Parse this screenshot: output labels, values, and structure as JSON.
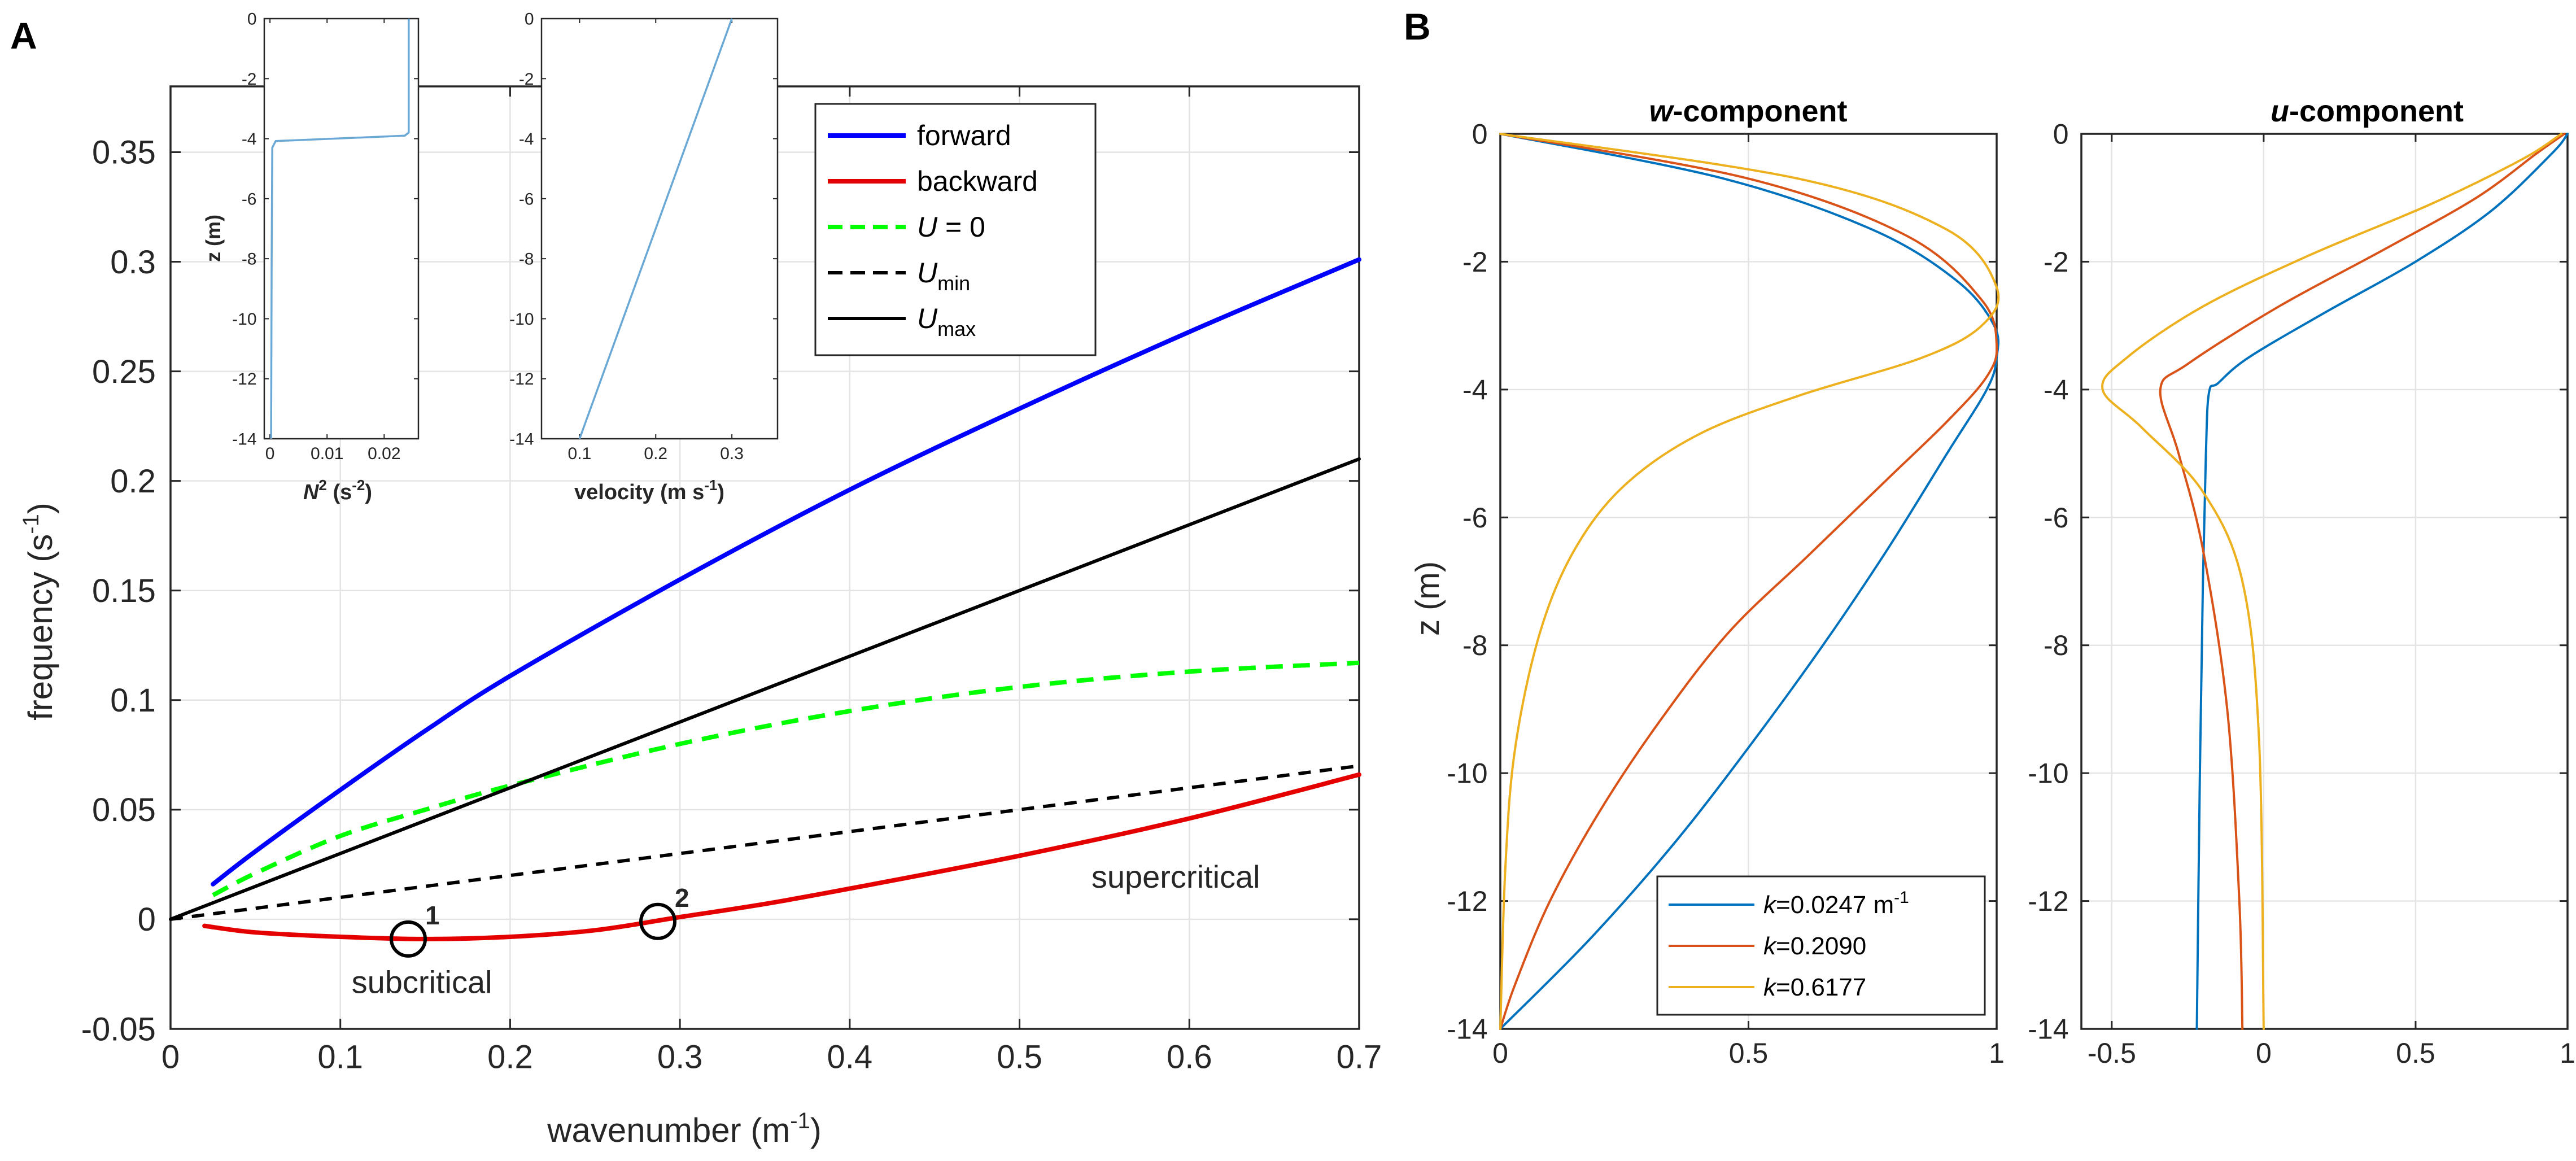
{
  "panels": {
    "a": "A",
    "b": "B"
  },
  "chart_data": [
    {
      "id": "dispersion",
      "type": "line",
      "xlabel": "wavenumber (m",
      "xlabel_sup": "-1",
      "xlabel_close": ")",
      "ylabel": "frequency (s",
      "ylabel_sup": "-1",
      "ylabel_close": ")",
      "xlim": [
        0,
        0.7
      ],
      "ylim": [
        -0.05,
        0.38
      ],
      "xticks": [
        0,
        0.1,
        0.2,
        0.3,
        0.4,
        0.5,
        0.6,
        0.7
      ],
      "xtick_labels": [
        "0",
        "0.1",
        "0.2",
        "0.3",
        "0.4",
        "0.5",
        "0.6",
        "0.7"
      ],
      "yticks": [
        -0.05,
        0,
        0.05,
        0.1,
        0.15,
        0.2,
        0.25,
        0.3,
        0.35
      ],
      "ytick_labels": [
        "-0.05",
        "0",
        "0.05",
        "0.1",
        "0.15",
        "0.2",
        "0.25",
        "0.3",
        "0.35"
      ],
      "grid": true,
      "legend": [
        {
          "label": "forward",
          "color": "#0000ff",
          "dash": "solid"
        },
        {
          "label": "backward",
          "color": "#e50000",
          "dash": "solid"
        },
        {
          "label": "U",
          "label_suffix": " = 0",
          "color": "#00ff00",
          "dash": "dashed"
        },
        {
          "label": "U",
          "label_sub": "min",
          "color": "#000000",
          "dash": "dashed"
        },
        {
          "label": "U",
          "label_sub": "max",
          "color": "#000000",
          "dash": "solid"
        }
      ],
      "series": [
        {
          "name": "forward",
          "color": "#0000ff",
          "dash": "solid",
          "x": [
            0.025,
            0.05,
            0.1,
            0.15,
            0.2,
            0.3,
            0.4,
            0.5,
            0.6,
            0.7
          ],
          "y": [
            0.016,
            0.031,
            0.059,
            0.086,
            0.111,
            0.155,
            0.196,
            0.233,
            0.268,
            0.301
          ]
        },
        {
          "name": "backward",
          "color": "#e50000",
          "dash": "solid",
          "x": [
            0.02,
            0.05,
            0.1,
            0.15,
            0.2,
            0.25,
            0.3,
            0.35,
            0.4,
            0.5,
            0.6,
            0.7
          ],
          "y": [
            -0.003,
            -0.006,
            -0.008,
            -0.009,
            -0.008,
            -0.005,
            0.001,
            0.007,
            0.014,
            0.029,
            0.046,
            0.066
          ]
        },
        {
          "name": "U = 0",
          "color": "#00ff00",
          "dash": "dashed",
          "x": [
            0.025,
            0.05,
            0.1,
            0.15,
            0.2,
            0.3,
            0.4,
            0.5,
            0.6,
            0.7
          ],
          "y": [
            0.011,
            0.021,
            0.038,
            0.05,
            0.061,
            0.08,
            0.095,
            0.106,
            0.113,
            0.117
          ]
        },
        {
          "name": "Umin",
          "color": "#000000",
          "dash": "dashed",
          "x": [
            0,
            0.7
          ],
          "y": [
            0,
            0.07
          ]
        },
        {
          "name": "Umax",
          "color": "#000000",
          "dash": "solid",
          "x": [
            0,
            0.7
          ],
          "y": [
            0,
            0.21
          ]
        }
      ],
      "markers": [
        {
          "label": "1",
          "x": 0.14,
          "y": -0.009
        },
        {
          "label": "2",
          "x": 0.287,
          "y": -0.001
        }
      ],
      "annotations": [
        {
          "text": "subcritical",
          "x": 0.148,
          "y": -0.029
        },
        {
          "text": "supercritical",
          "x": 0.592,
          "y": 0.019
        }
      ]
    },
    {
      "id": "inset-n2",
      "type": "line",
      "xlabel": "N",
      "xlabel_sup": "2",
      "xlabel_rest": " (s",
      "xlabel_sup2": "-2",
      "xlabel_close": ")",
      "ylabel": "z (m)",
      "xlim": [
        -0.001,
        0.026
      ],
      "ylim": [
        -14,
        0
      ],
      "xticks": [
        0,
        0.01,
        0.02
      ],
      "xtick_labels": [
        "0",
        "0.01",
        "0.02"
      ],
      "yticks": [
        0,
        -2,
        -4,
        -6,
        -8,
        -10,
        -12,
        -14
      ],
      "ytick_labels": [
        "0",
        "-2",
        "-4",
        "-6",
        "-8",
        "-10",
        "-12",
        "-14"
      ],
      "series": [
        {
          "name": "N2",
          "color": "#6aa8d6",
          "x": [
            0.0243,
            0.0243,
            0.0236,
            0.001,
            0.0004,
            0.0003,
            0.0002
          ],
          "y": [
            0,
            -3.8,
            -3.9,
            -4.08,
            -4.3,
            -8,
            -14
          ]
        }
      ]
    },
    {
      "id": "inset-velocity",
      "type": "line",
      "xlabel": "velocity (m s",
      "xlabel_sup": "-1",
      "xlabel_close": ")",
      "xlim": [
        0.05,
        0.36
      ],
      "ylim": [
        -14,
        0
      ],
      "xticks": [
        0.1,
        0.2,
        0.3
      ],
      "xtick_labels": [
        "0.1",
        "0.2",
        "0.3"
      ],
      "yticks": [
        0,
        -2,
        -4,
        -6,
        -8,
        -10,
        -12,
        -14
      ],
      "ytick_labels": [
        "0",
        "-2",
        "-4",
        "-6",
        "-8",
        "-10",
        "-12",
        "-14"
      ],
      "series": [
        {
          "name": "velocity",
          "color": "#6aa8d6",
          "x": [
            0.3,
            0.1
          ],
          "y": [
            0,
            -14
          ]
        }
      ]
    },
    {
      "id": "w-component",
      "type": "line",
      "title": "w",
      "title_rest": "-component",
      "ylabel": "z (m)",
      "xlim": [
        0,
        1
      ],
      "ylim": [
        -14,
        0
      ],
      "xticks": [
        0,
        0.5,
        1
      ],
      "xtick_labels": [
        "0",
        "0.5",
        "1"
      ],
      "yticks": [
        0,
        -2,
        -4,
        -6,
        -8,
        -10,
        -12,
        -14
      ],
      "ytick_labels": [
        "0",
        "-2",
        "-4",
        "-6",
        "-8",
        "-10",
        "-12",
        "-14"
      ],
      "grid": true,
      "legend": [
        {
          "k": "k",
          "value": "=0.0247 m",
          "sup": "-1",
          "color": "#0072bd"
        },
        {
          "k": "k",
          "value": "=0.2090",
          "sup": "",
          "color": "#d95319"
        },
        {
          "k": "k",
          "value": "=0.6177",
          "sup": "",
          "color": "#edb120"
        }
      ],
      "series": [
        {
          "name": "k=0.0247",
          "color": "#0072bd",
          "x": [
            0,
            0.45,
            0.75,
            0.92,
            0.995,
            1.0,
            0.98,
            0.9,
            0.78,
            0.65,
            0.5,
            0.35,
            0.18,
            0
          ],
          "y": [
            0,
            -0.7,
            -1.5,
            -2.3,
            -3.0,
            -3.5,
            -4.0,
            -5.0,
            -6.5,
            -8.0,
            -9.6,
            -11.1,
            -12.6,
            -14
          ]
        },
        {
          "name": "k=0.2090",
          "color": "#d95319",
          "x": [
            0,
            0.5,
            0.82,
            0.97,
            1.0,
            0.98,
            0.9,
            0.78,
            0.62,
            0.46,
            0.32,
            0.2,
            0.1,
            0.03,
            0
          ],
          "y": [
            0,
            -0.7,
            -1.6,
            -2.6,
            -3.3,
            -3.8,
            -4.5,
            -5.4,
            -6.6,
            -7.8,
            -9.2,
            -10.6,
            -12.0,
            -13.3,
            -14
          ]
        },
        {
          "name": "k=0.6177",
          "color": "#edb120",
          "x": [
            0,
            0.6,
            0.9,
            1.0,
            0.97,
            0.85,
            0.6,
            0.4,
            0.25,
            0.15,
            0.08,
            0.03,
            0.01,
            0
          ],
          "y": [
            0,
            -0.7,
            -1.5,
            -2.4,
            -3.0,
            -3.5,
            -4.1,
            -4.7,
            -5.5,
            -6.5,
            -7.8,
            -9.6,
            -11.5,
            -14
          ]
        }
      ]
    },
    {
      "id": "u-component",
      "type": "line",
      "title": "u",
      "title_rest": "-component",
      "xlim": [
        -0.6,
        1
      ],
      "ylim": [
        -14,
        0
      ],
      "xticks": [
        -0.5,
        0,
        0.5,
        1
      ],
      "xtick_labels": [
        "-0.5",
        "0",
        "0.5",
        "1"
      ],
      "yticks": [
        0,
        -2,
        -4,
        -6,
        -8,
        -10,
        -12,
        -14
      ],
      "ytick_labels": [
        "0",
        "-2",
        "-4",
        "-6",
        "-8",
        "-10",
        "-12",
        "-14"
      ],
      "grid": true,
      "series": [
        {
          "name": "k=0.0247",
          "color": "#0072bd",
          "x": [
            1.0,
            0.95,
            0.75,
            0.5,
            0.2,
            -0.05,
            -0.15,
            -0.18,
            -0.19,
            -0.2,
            -0.21,
            -0.22
          ],
          "y": [
            0,
            -0.3,
            -1.2,
            -2.0,
            -2.8,
            -3.5,
            -3.9,
            -4.05,
            -5.0,
            -7.0,
            -10.0,
            -14
          ]
        },
        {
          "name": "k=0.2090",
          "color": "#d95319",
          "x": [
            0.99,
            0.9,
            0.7,
            0.4,
            0.05,
            -0.25,
            -0.34,
            -0.28,
            -0.2,
            -0.12,
            -0.08,
            -0.07
          ],
          "y": [
            0,
            -0.3,
            -1.0,
            -1.8,
            -2.7,
            -3.6,
            -4.0,
            -5.0,
            -6.5,
            -9.0,
            -12.0,
            -14
          ]
        },
        {
          "name": "k=0.6177",
          "color": "#edb120",
          "x": [
            0.98,
            0.85,
            0.55,
            0.15,
            -0.2,
            -0.45,
            -0.53,
            -0.4,
            -0.2,
            -0.07,
            -0.015,
            0
          ],
          "y": [
            0,
            -0.4,
            -1.1,
            -1.9,
            -2.7,
            -3.5,
            -4.0,
            -4.6,
            -5.6,
            -7.0,
            -9.5,
            -14
          ]
        }
      ]
    }
  ]
}
